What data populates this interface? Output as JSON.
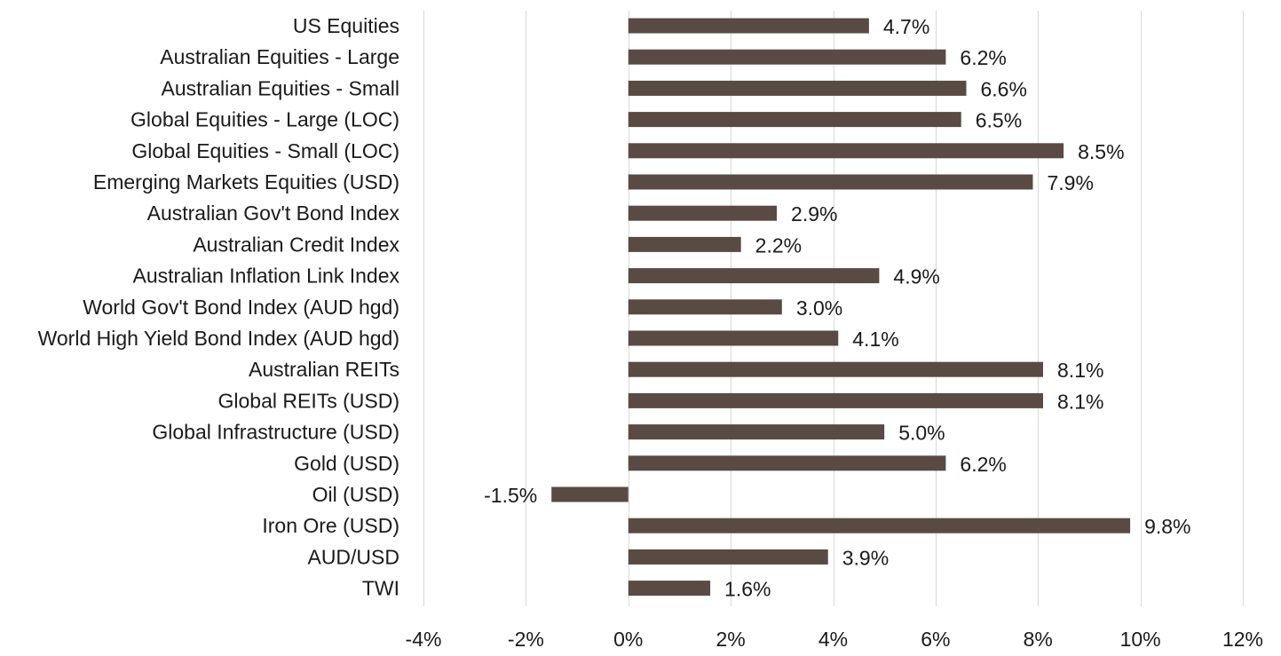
{
  "chart_data": {
    "type": "bar",
    "orientation": "horizontal",
    "categories": [
      "US Equities",
      "Australian Equities - Large",
      "Australian Equities - Small",
      "Global Equities - Large (LOC)",
      "Global Equities - Small (LOC)",
      "Emerging Markets Equities (USD)",
      "Australian Gov't Bond Index",
      "Australian Credit Index",
      "Australian Inflation Link Index",
      "World Gov't Bond Index (AUD hgd)",
      "World High Yield Bond Index (AUD hgd)",
      "Australian REITs",
      "Global REITs (USD)",
      "Global Infrastructure (USD)",
      "Gold (USD)",
      "Oil (USD)",
      "Iron Ore (USD)",
      "AUD/USD",
      "TWI"
    ],
    "values": [
      4.7,
      6.2,
      6.6,
      6.5,
      8.5,
      7.9,
      2.9,
      2.2,
      4.9,
      3.0,
      4.1,
      8.1,
      8.1,
      5.0,
      6.2,
      -1.5,
      9.8,
      3.9,
      1.6
    ],
    "data_labels": [
      "4.7%",
      "6.2%",
      "6.6%",
      "6.5%",
      "8.5%",
      "7.9%",
      "2.9%",
      "2.2%",
      "4.9%",
      "3.0%",
      "4.1%",
      "8.1%",
      "8.1%",
      "5.0%",
      "6.2%",
      "-1.5%",
      "9.8%",
      "3.9%",
      "1.6%"
    ],
    "x_ticks": [
      -4,
      -2,
      0,
      2,
      4,
      6,
      8,
      10,
      12
    ],
    "x_tick_labels": [
      "-4%",
      "-2%",
      "0%",
      "2%",
      "4%",
      "6%",
      "8%",
      "10%",
      "12%"
    ],
    "xlim": [
      -4,
      12
    ],
    "grid": "vertical",
    "legend": "none",
    "title": "",
    "xlabel": "",
    "ylabel": "",
    "bar_color": "#5a4a44"
  }
}
